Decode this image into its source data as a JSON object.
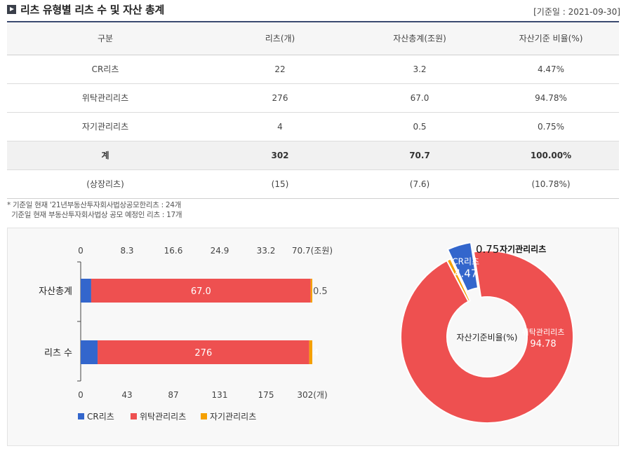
{
  "header": {
    "title": "리츠 유형별 리츠 수 및 자산 총계",
    "base_date": "[기준일 : 2021-09-30]"
  },
  "table": {
    "headers": [
      "구분",
      "리츠(개)",
      "자산총계(조원)",
      "자산기준 비율(%)"
    ],
    "rows": [
      {
        "name": "CR리츠",
        "count": "22",
        "assets": "3.2",
        "ratio": "4.47%"
      },
      {
        "name": "위탁관리리츠",
        "count": "276",
        "assets": "67.0",
        "ratio": "94.78%"
      },
      {
        "name": "자기관리리츠",
        "count": "4",
        "assets": "0.5",
        "ratio": "0.75%"
      },
      {
        "name": "계",
        "count": "302",
        "assets": "70.7",
        "ratio": "100.00%"
      },
      {
        "name": "(상장리츠)",
        "count": "(15)",
        "assets": "(7.6)",
        "ratio": "(10.78%)"
      }
    ]
  },
  "notes": [
    "* 기준일 현재 '21년부동산투자회사법상공모한리츠 : 24개",
    "  기준일 현재 부동산투자회사법상 공모 예정인 리츠 : 17개"
  ],
  "colors": {
    "cr": "#3366cc",
    "trust": "#ee5050",
    "self": "#f5a000"
  },
  "chart_data": [
    {
      "type": "bar",
      "orientation": "horizontal",
      "stacked": true,
      "categories": [
        "자산총계",
        "리츠 수"
      ],
      "series": [
        {
          "name": "CR리츠",
          "values": [
            3.2,
            22
          ]
        },
        {
          "name": "위탁관리리츠",
          "values": [
            67.0,
            276
          ]
        },
        {
          "name": "자기관리리츠",
          "values": [
            0.5,
            4
          ]
        }
      ],
      "top_axis": {
        "ticks": [
          "0",
          "8.3",
          "16.6",
          "24.9",
          "33.2",
          "70.7(조원)"
        ],
        "max": 70.7
      },
      "bottom_axis": {
        "ticks": [
          "0",
          "43",
          "87",
          "131",
          "175",
          "302(개)"
        ],
        "max": 302
      },
      "legend": "bottom-left"
    },
    {
      "type": "pie",
      "donut": true,
      "center_label": "자산기준비율(%)",
      "slices": [
        {
          "name": "CR리츠",
          "value": 4.47,
          "label": "4.47",
          "exploded": true
        },
        {
          "name": "위탁관리리츠",
          "value": 94.78,
          "label": "94.78"
        },
        {
          "name": "자기관리리츠",
          "value": 0.75,
          "label": "0.75"
        }
      ]
    }
  ]
}
